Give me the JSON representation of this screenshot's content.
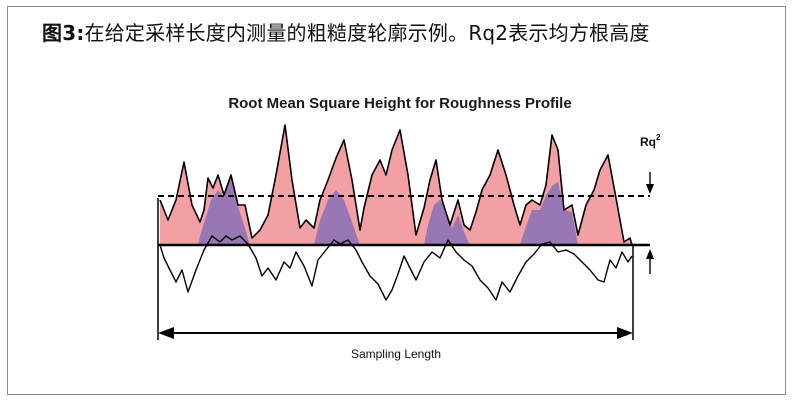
{
  "caption": {
    "label": "图3:",
    "text": "在给定采样长度内测量的粗糙度轮廓示例。Rq2表示均方根高度"
  },
  "diagram": {
    "title": "Root Mean Square Height for Roughness Profile",
    "rq_label": "Rq",
    "rq_superscript": "2",
    "sampling_label": "Sampling Length",
    "colors": {
      "above_fill": "#f2a0a4",
      "below_squared_fill": "#9878b4",
      "line": "#000000",
      "frame": "#8c8c8c"
    }
  }
}
